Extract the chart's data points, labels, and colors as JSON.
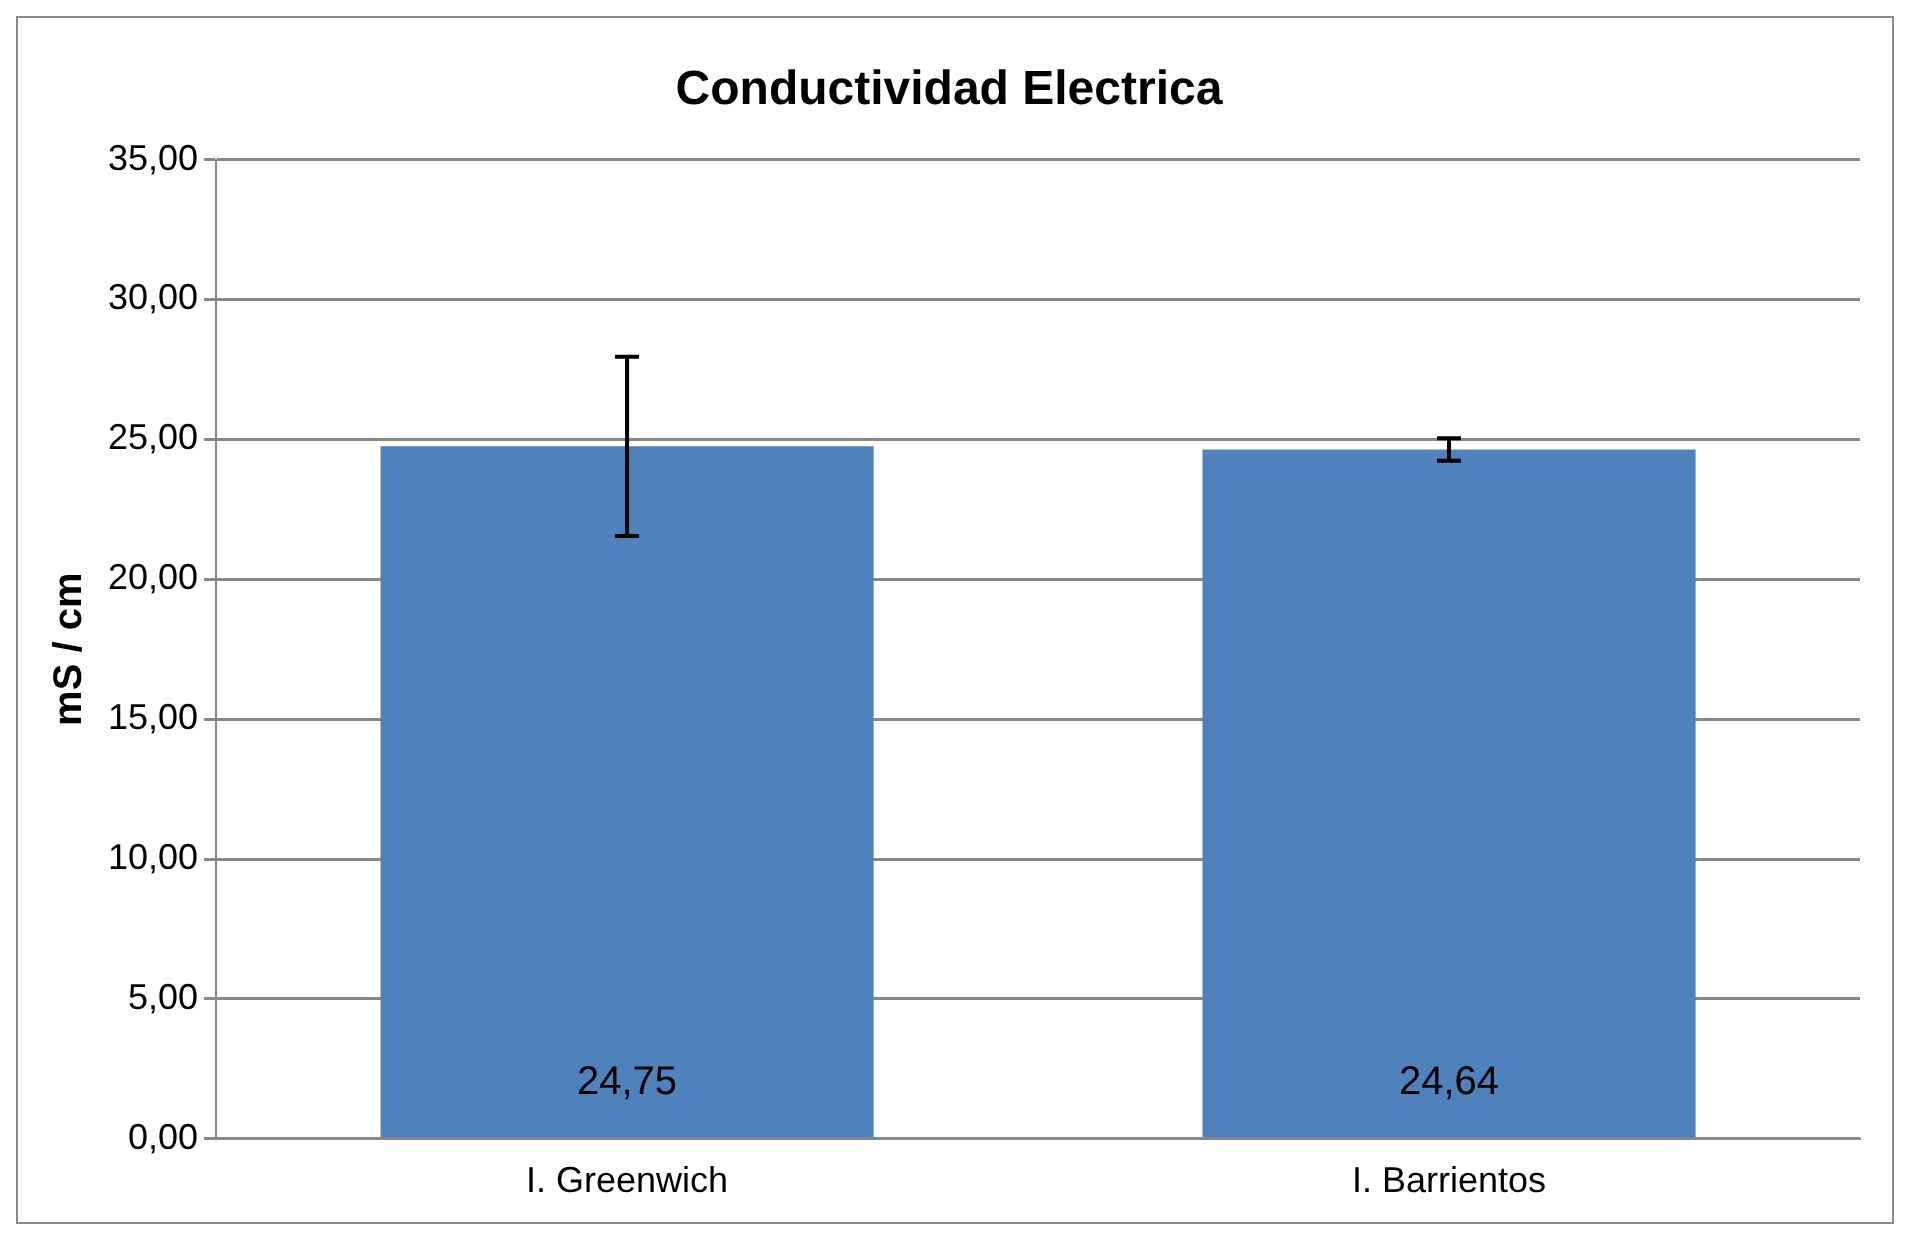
{
  "chart_data": {
    "type": "bar",
    "title": "Conductividad Electrica",
    "ylabel": "mS / cm",
    "categories": [
      "I. Greenwich",
      "I. Barrientos"
    ],
    "values": [
      24.75,
      24.64
    ],
    "value_labels": [
      "24,75",
      "24,64"
    ],
    "errors": [
      3.2,
      0.4
    ],
    "color": "#4f81bd",
    "ylim": [
      0,
      35
    ],
    "yticks": [
      {
        "value": 0,
        "label": "0,00"
      },
      {
        "value": 5,
        "label": "5,00"
      },
      {
        "value": 10,
        "label": "10,00"
      },
      {
        "value": 15,
        "label": "15,00"
      },
      {
        "value": 20,
        "label": "20,00"
      },
      {
        "value": 25,
        "label": "25,00"
      },
      {
        "value": 30,
        "label": "30,00"
      },
      {
        "value": 35,
        "label": "35,00"
      }
    ],
    "grid": "y",
    "legend": false
  }
}
